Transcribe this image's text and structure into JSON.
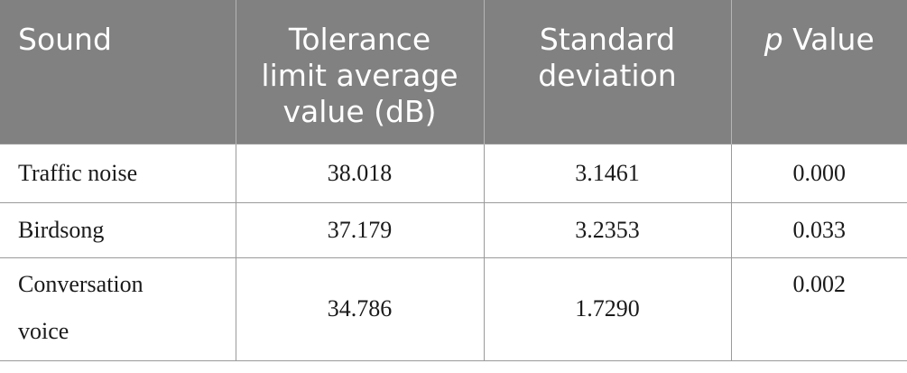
{
  "table": {
    "headers": {
      "sound": "Sound",
      "tolerance_line1": "Tolerance",
      "tolerance_line2": "limit average",
      "tolerance_line3": "value (dB)",
      "sd_line1": "Standard",
      "sd_line2": "deviation",
      "p_italic": "p",
      "p_rest": " Value"
    },
    "rows": [
      {
        "sound": "Traffic noise",
        "tolerance": "38.018",
        "sd": "3.1461",
        "p": "0.000"
      },
      {
        "sound": "Birdsong",
        "tolerance": "37.179",
        "sd": "3.2353",
        "p": "0.033"
      },
      {
        "sound_line1": "Conversation",
        "sound_line2": "voice",
        "tolerance": "34.786",
        "sd": "1.7290",
        "p": "0.002"
      }
    ]
  }
}
